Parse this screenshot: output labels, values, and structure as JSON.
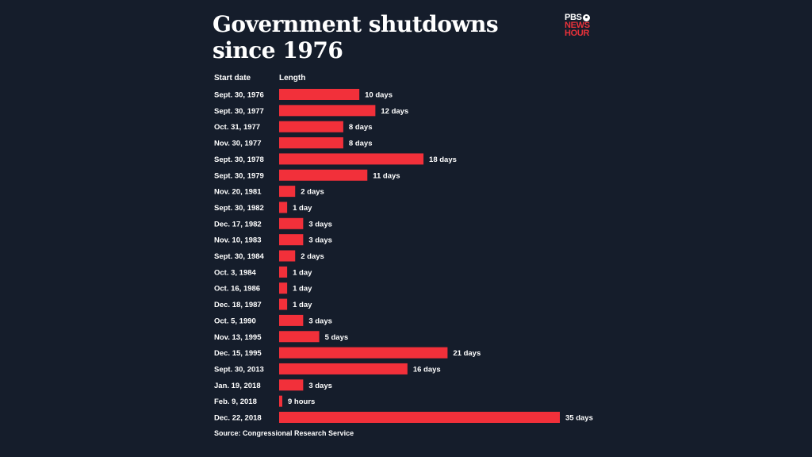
{
  "title": "Government shutdowns since 1976",
  "logo": {
    "line1": "PBS",
    "line2": "NEWS",
    "line3": "HOUR"
  },
  "header": {
    "start_date_label": "Start date",
    "length_label": "Length"
  },
  "source": "Source: Congressional Research Service",
  "colors": {
    "background": "#151d2b",
    "bar": "#f2303a",
    "text": "#ffffff",
    "brand_red": "#e8323a"
  },
  "chart_data": {
    "type": "bar",
    "orientation": "horizontal",
    "title": "Government shutdowns since 1976",
    "units": "days",
    "categories": [
      "Sept. 30, 1976",
      "Sept. 30, 1977",
      "Oct. 31, 1977",
      "Nov. 30, 1977",
      "Sept. 30, 1978",
      "Sept. 30, 1979",
      "Nov. 20, 1981",
      "Sept. 30, 1982",
      "Dec. 17, 1982",
      "Nov. 10, 1983",
      "Sept. 30, 1984",
      "Oct. 3, 1984",
      "Oct. 16, 1986",
      "Dec. 18, 1987",
      "Oct. 5, 1990",
      "Nov. 13, 1995",
      "Dec. 15, 1995",
      "Sept. 30, 2013",
      "Jan. 19, 2018",
      "Feb. 9, 2018",
      "Dec. 22, 2018"
    ],
    "values": [
      10,
      12,
      8,
      8,
      18,
      11,
      2,
      1,
      3,
      3,
      2,
      1,
      1,
      1,
      3,
      5,
      21,
      16,
      3,
      0.375,
      35
    ],
    "labels": [
      "10 days",
      "12 days",
      "8 days",
      "8 days",
      "18 days",
      "11 days",
      "2 days",
      "1 day",
      "3 days",
      "3 days",
      "2 days",
      "1 day",
      "1 day",
      "1 day",
      "3 days",
      "5 days",
      "21 days",
      "16 days",
      "3 days",
      "9 hours",
      "35 days"
    ],
    "xlim": [
      0,
      35
    ],
    "grid": false,
    "legend": "none"
  }
}
